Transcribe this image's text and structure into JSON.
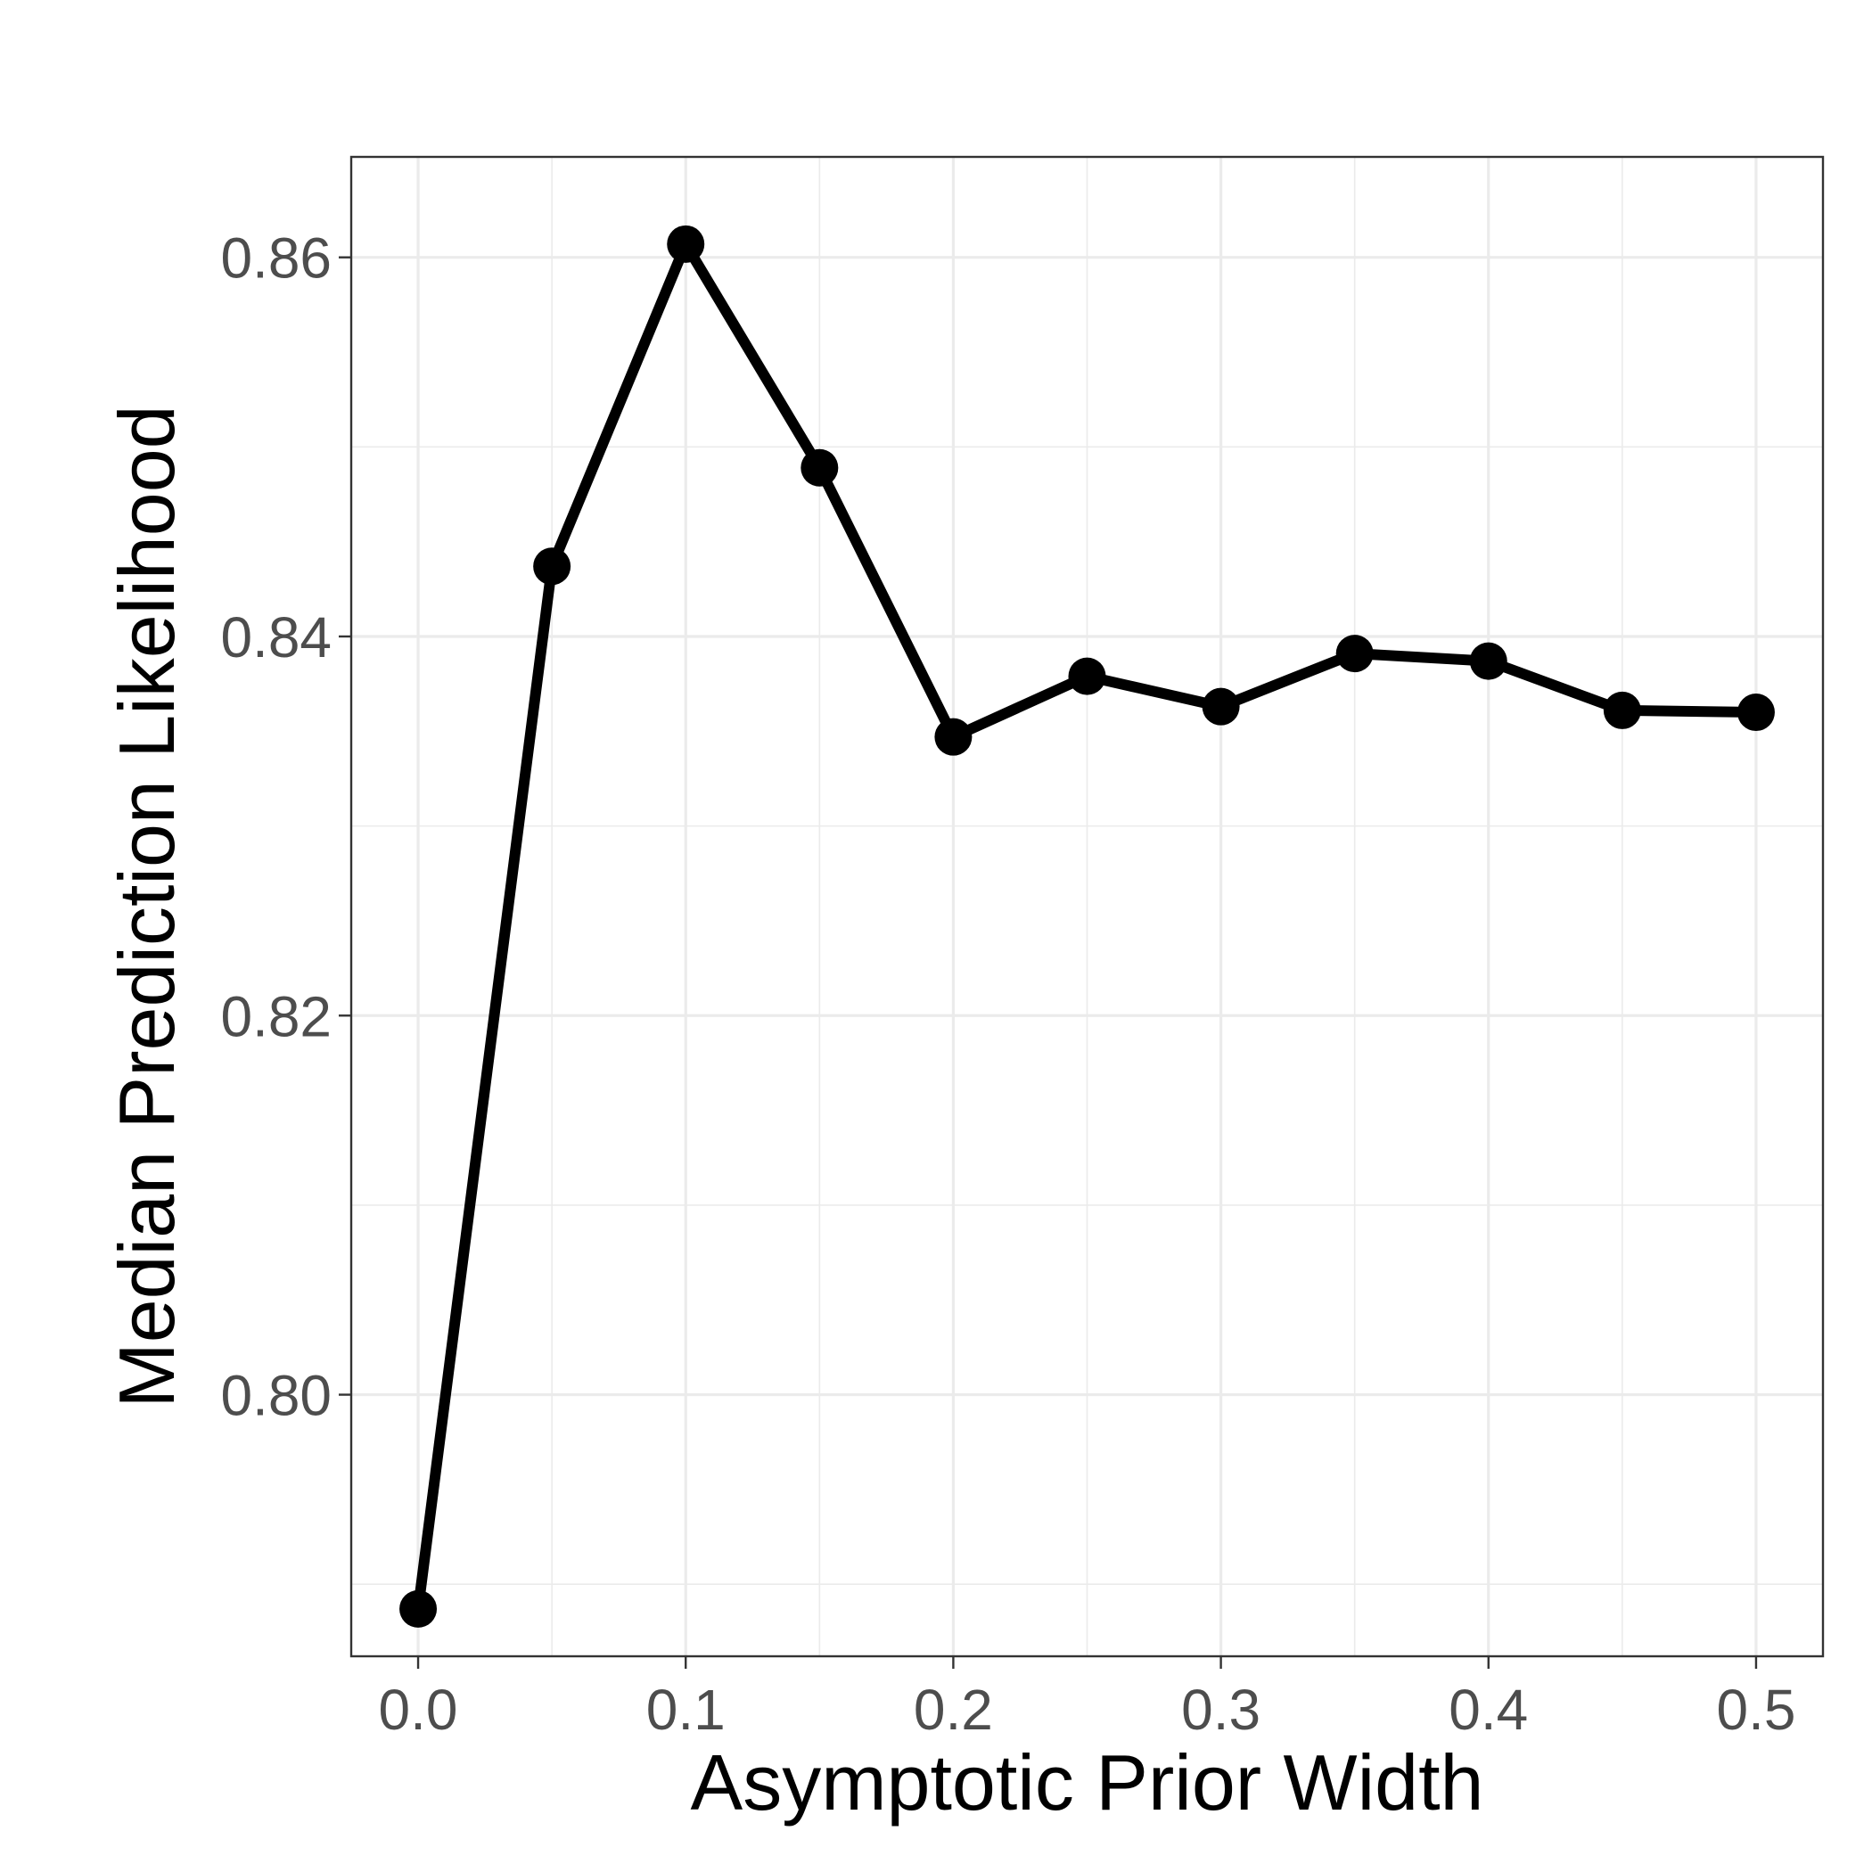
{
  "chart_data": {
    "type": "line",
    "title": "",
    "xlabel": "Asymptotic Prior Width",
    "ylabel": "Median Prediction Likelihood",
    "x": [
      0.0,
      0.05,
      0.1,
      0.15,
      0.2,
      0.25,
      0.3,
      0.35,
      0.4,
      0.45,
      0.5
    ],
    "series": [
      {
        "values": [
          0.7887,
          0.8437,
          0.8607,
          0.8489,
          0.8347,
          0.8379,
          0.8363,
          0.8391,
          0.8387,
          0.8361,
          0.836
        ]
      }
    ],
    "xlim": [
      -0.025,
      0.525
    ],
    "ylim": [
      0.7862,
      0.8653
    ],
    "x_ticks": [
      0.0,
      0.1,
      0.2,
      0.3,
      0.4,
      0.5
    ],
    "x_tick_labels": [
      "0.0",
      "0.1",
      "0.2",
      "0.3",
      "0.4",
      "0.5"
    ],
    "y_ticks": [
      0.8,
      0.82,
      0.84,
      0.86
    ],
    "y_tick_labels": [
      "0.80",
      "0.82",
      "0.84",
      "0.86"
    ],
    "x_minor_ticks": [
      0.05,
      0.15,
      0.25,
      0.35,
      0.45
    ],
    "y_minor_ticks": [
      0.79,
      0.81,
      0.83,
      0.85
    ],
    "grid": true,
    "legend": "none",
    "colors": {
      "series": "#000000",
      "grid": "#ebebeb",
      "tick_text": "#4d4d4d",
      "border": "#333333"
    }
  }
}
